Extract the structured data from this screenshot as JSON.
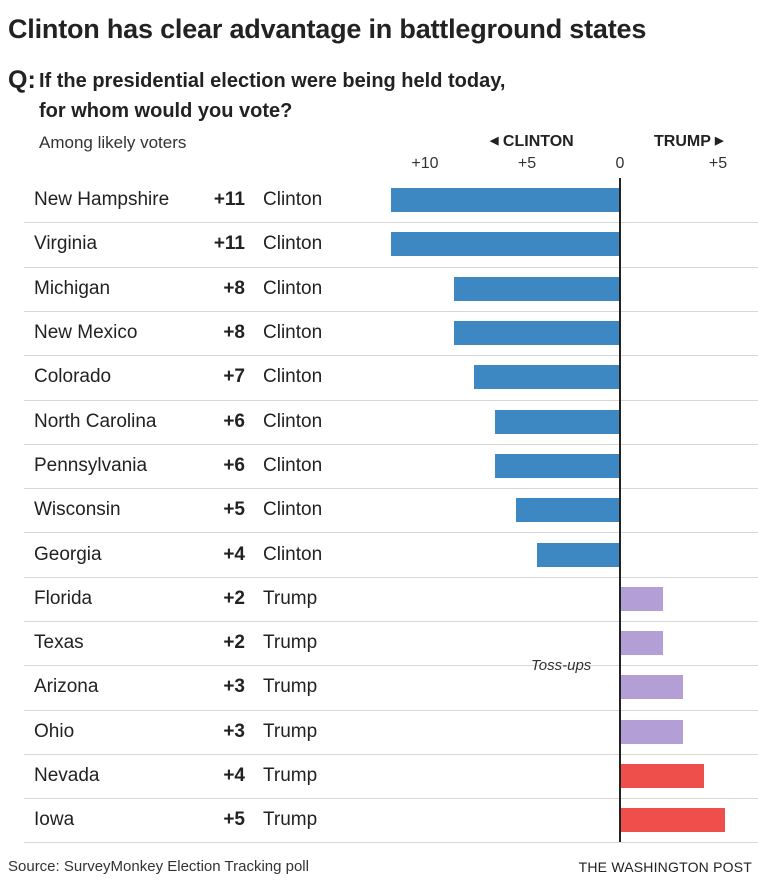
{
  "title": "Clinton has clear advantage in battleground states",
  "question": {
    "label": "Q:",
    "line1": "If the presidential election were being held today,",
    "line2": "for whom would you vote?"
  },
  "subtitle": "Among likely voters",
  "source": "Source: SurveyMonkey Election Tracking poll",
  "credit": "THE WASHINGTON POST",
  "colors": {
    "clinton": "#3d87c2",
    "tossup": "#b39fd6",
    "trump": "#ee4f4b"
  },
  "chart_data": {
    "type": "bar",
    "orientation": "horizontal-diverging",
    "left_label": "CLINTON",
    "right_label": "TRUMP",
    "ticks": [
      "+10",
      "+5",
      "0",
      "+5"
    ],
    "xlim": [
      -11,
      5
    ],
    "annotation": "Toss-ups",
    "rows": [
      {
        "state": "New Hampshire",
        "margin_label": "+11",
        "winner": "Clinton",
        "value": -11,
        "group": "clinton"
      },
      {
        "state": "Virginia",
        "margin_label": "+11",
        "winner": "Clinton",
        "value": -11,
        "group": "clinton"
      },
      {
        "state": "Michigan",
        "margin_label": "+8",
        "winner": "Clinton",
        "value": -8,
        "group": "clinton"
      },
      {
        "state": "New Mexico",
        "margin_label": "+8",
        "winner": "Clinton",
        "value": -8,
        "group": "clinton"
      },
      {
        "state": "Colorado",
        "margin_label": "+7",
        "winner": "Clinton",
        "value": -7,
        "group": "clinton"
      },
      {
        "state": "North Carolina",
        "margin_label": "+6",
        "winner": "Clinton",
        "value": -6,
        "group": "clinton"
      },
      {
        "state": "Pennsylvania",
        "margin_label": "+6",
        "winner": "Clinton",
        "value": -6,
        "group": "clinton"
      },
      {
        "state": "Wisconsin",
        "margin_label": "+5",
        "winner": "Clinton",
        "value": -5,
        "group": "clinton"
      },
      {
        "state": "Georgia",
        "margin_label": "+4",
        "winner": "Clinton",
        "value": -4,
        "group": "clinton"
      },
      {
        "state": "Florida",
        "margin_label": "+2",
        "winner": "Trump",
        "value": 2,
        "group": "tossup"
      },
      {
        "state": "Texas",
        "margin_label": "+2",
        "winner": "Trump",
        "value": 2,
        "group": "tossup"
      },
      {
        "state": "Arizona",
        "margin_label": "+3",
        "winner": "Trump",
        "value": 3,
        "group": "tossup"
      },
      {
        "state": "Ohio",
        "margin_label": "+3",
        "winner": "Trump",
        "value": 3,
        "group": "tossup"
      },
      {
        "state": "Nevada",
        "margin_label": "+4",
        "winner": "Trump",
        "value": 4,
        "group": "trump"
      },
      {
        "state": "Iowa",
        "margin_label": "+5",
        "winner": "Trump",
        "value": 5,
        "group": "trump"
      }
    ]
  }
}
